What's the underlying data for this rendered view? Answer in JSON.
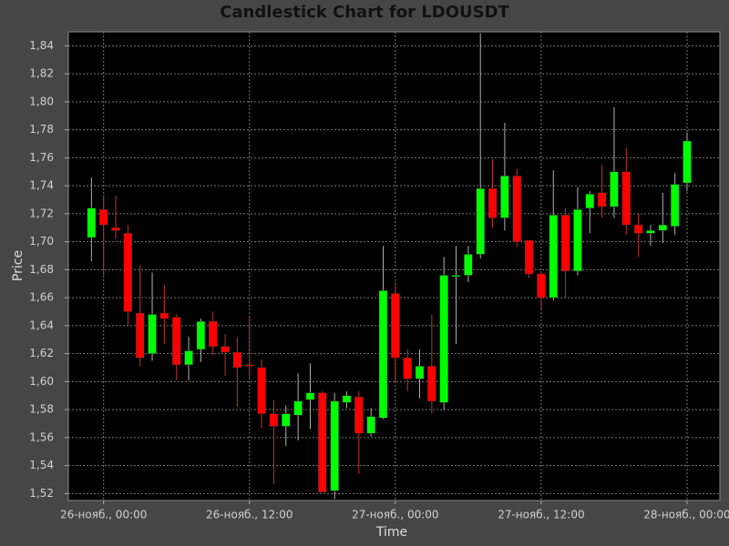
{
  "chart_data": {
    "type": "candlestick",
    "title": "Candlestick Chart for LDOUSDT",
    "xlabel": "Time",
    "ylabel": "Price",
    "x": [
      -1,
      0,
      1,
      2,
      3,
      4,
      5,
      6,
      7,
      8,
      9,
      10,
      11,
      12,
      13,
      14,
      15,
      16,
      17,
      18,
      19,
      20,
      21,
      22,
      23,
      24,
      25,
      26,
      27,
      28,
      29,
      30,
      31,
      32,
      33,
      34,
      35,
      36,
      37,
      38,
      39,
      40,
      41,
      42,
      43,
      44,
      45,
      46,
      47,
      48
    ],
    "open": [
      1.703,
      1.723,
      1.71,
      1.706,
      1.649,
      1.62,
      1.649,
      1.646,
      1.612,
      1.623,
      1.643,
      1.625,
      1.621,
      1.612,
      1.61,
      1.577,
      1.568,
      1.576,
      1.587,
      1.592,
      1.522,
      1.585,
      1.589,
      1.563,
      1.574,
      1.663,
      1.617,
      1.602,
      1.611,
      1.585,
      1.675,
      1.676,
      1.691,
      1.738,
      1.717,
      1.747,
      1.701,
      1.677,
      1.66,
      1.719,
      1.679,
      1.724,
      1.735,
      1.725,
      1.75,
      1.712,
      1.706,
      1.708,
      1.711,
      1.742
    ],
    "high": [
      1.746,
      1.733,
      1.733,
      1.712,
      1.683,
      1.678,
      1.669,
      1.648,
      1.632,
      1.645,
      1.65,
      1.634,
      1.632,
      1.646,
      1.616,
      1.587,
      1.583,
      1.606,
      1.613,
      1.593,
      1.592,
      1.593,
      1.593,
      1.581,
      1.697,
      1.671,
      1.623,
      1.623,
      1.648,
      1.689,
      1.697,
      1.697,
      1.849,
      1.759,
      1.785,
      1.752,
      1.701,
      1.679,
      1.751,
      1.724,
      1.739,
      1.736,
      1.755,
      1.796,
      1.767,
      1.72,
      1.712,
      1.735,
      1.749,
      1.778
    ],
    "low": [
      1.686,
      1.676,
      1.702,
      1.64,
      1.611,
      1.615,
      1.627,
      1.601,
      1.601,
      1.614,
      1.619,
      1.604,
      1.582,
      1.603,
      1.567,
      1.527,
      1.554,
      1.558,
      1.566,
      1.521,
      1.516,
      1.581,
      1.534,
      1.561,
      1.573,
      1.599,
      1.593,
      1.588,
      1.577,
      1.58,
      1.627,
      1.671,
      1.688,
      1.71,
      1.708,
      1.696,
      1.674,
      1.652,
      1.658,
      1.66,
      1.676,
      1.706,
      1.717,
      1.717,
      1.705,
      1.689,
      1.697,
      1.699,
      1.705,
      1.736
    ],
    "close": [
      1.724,
      1.712,
      1.708,
      1.65,
      1.617,
      1.648,
      1.645,
      1.612,
      1.622,
      1.643,
      1.625,
      1.621,
      1.61,
      1.611,
      1.577,
      1.568,
      1.577,
      1.586,
      1.592,
      1.521,
      1.586,
      1.59,
      1.563,
      1.575,
      1.665,
      1.617,
      1.602,
      1.611,
      1.586,
      1.676,
      1.676,
      1.691,
      1.738,
      1.717,
      1.747,
      1.7,
      1.677,
      1.66,
      1.719,
      1.679,
      1.723,
      1.734,
      1.725,
      1.75,
      1.712,
      1.706,
      1.708,
      1.712,
      1.741,
      1.772
    ],
    "up_color": "#00ff00",
    "down_color": "#ff0000",
    "xlim": [
      -2.9,
      50.7
    ],
    "xticks": [
      {
        "value": 0,
        "label": "26-нояб., 00:00"
      },
      {
        "value": 12,
        "label": "26-нояб., 12:00"
      },
      {
        "value": 24,
        "label": "27-нояб., 00:00"
      },
      {
        "value": 36,
        "label": "27-нояб., 12:00"
      },
      {
        "value": 48,
        "label": "28-нояб., 00:00"
      }
    ],
    "ylim": [
      1.515,
      1.85
    ],
    "yticks": [
      {
        "value": 1.52,
        "label": "1,52"
      },
      {
        "value": 1.54,
        "label": "1,54"
      },
      {
        "value": 1.56,
        "label": "1,56"
      },
      {
        "value": 1.58,
        "label": "1,58"
      },
      {
        "value": 1.6,
        "label": "1,60"
      },
      {
        "value": 1.62,
        "label": "1,62"
      },
      {
        "value": 1.64,
        "label": "1,64"
      },
      {
        "value": 1.66,
        "label": "1,66"
      },
      {
        "value": 1.68,
        "label": "1,68"
      },
      {
        "value": 1.7,
        "label": "1,70"
      },
      {
        "value": 1.72,
        "label": "1,72"
      },
      {
        "value": 1.74,
        "label": "1,74"
      },
      {
        "value": 1.76,
        "label": "1,76"
      },
      {
        "value": 1.78,
        "label": "1,78"
      },
      {
        "value": 1.8,
        "label": "1,80"
      },
      {
        "value": 1.82,
        "label": "1,82"
      },
      {
        "value": 1.84,
        "label": "1,84"
      }
    ],
    "grid": true
  }
}
